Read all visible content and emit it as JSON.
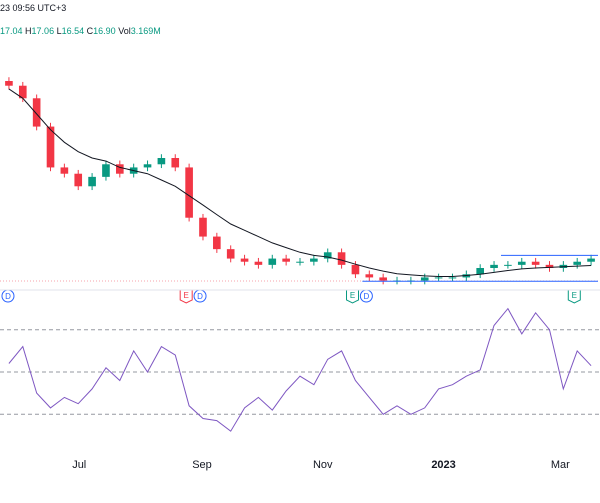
{
  "header": {
    "time": "23 09:56 UTC+3",
    "ohlc": {
      "open_label": "",
      "open_value": "17.04",
      "high_label": "H",
      "high_value": "17.06",
      "low_label": "L",
      "low_value": "16.54",
      "close_label": "C",
      "close_value": "16.90",
      "vol_label": "Vol",
      "vol_value": "3.169M"
    }
  },
  "colors": {
    "up": "#089981",
    "down": "#f23645",
    "ma": "#131722",
    "rsi": "#7e57c2",
    "trend": "#2962ff",
    "dividend": "#2962ff",
    "earnings_red": "#f23645",
    "earnings_green": "#089981"
  },
  "chart_data": [
    {
      "type": "candlestick",
      "title": "",
      "x_ticks": [
        "Jul",
        "Sep",
        "Nov",
        "2023",
        "Mar"
      ],
      "x": [
        "2022-05-23",
        "2022-05-30",
        "2022-06-06",
        "2022-06-13",
        "2022-06-20",
        "2022-06-27",
        "2022-07-04",
        "2022-07-11",
        "2022-07-18",
        "2022-07-25",
        "2022-08-01",
        "2022-08-08",
        "2022-08-15",
        "2022-08-22",
        "2022-08-29",
        "2022-09-05",
        "2022-09-12",
        "2022-09-19",
        "2022-09-26",
        "2022-10-03",
        "2022-10-10",
        "2022-10-17",
        "2022-10-24",
        "2022-10-31",
        "2022-11-07",
        "2022-11-14",
        "2022-11-21",
        "2022-11-28",
        "2022-12-05",
        "2022-12-12",
        "2022-12-19",
        "2022-12-26",
        "2023-01-02",
        "2023-01-09",
        "2023-01-16",
        "2023-01-23",
        "2023-01-30",
        "2023-02-06",
        "2023-02-13",
        "2023-02-20",
        "2023-02-27",
        "2023-03-06",
        "2023-03-13"
      ],
      "close": [
        20.4,
        20.0,
        19.1,
        17.8,
        17.6,
        17.2,
        17.5,
        17.9,
        17.6,
        17.8,
        17.9,
        18.1,
        17.8,
        16.2,
        15.6,
        15.2,
        14.9,
        14.8,
        14.7,
        14.9,
        14.8,
        14.8,
        14.9,
        15.1,
        14.7,
        14.4,
        14.3,
        14.2,
        14.2,
        14.2,
        14.3,
        14.3,
        14.3,
        14.4,
        14.6,
        14.7,
        14.7,
        14.8,
        14.7,
        14.6,
        14.7,
        14.8,
        14.9
      ],
      "ma": [
        20.3,
        20.0,
        19.5,
        19.0,
        18.6,
        18.3,
        18.1,
        18.0,
        17.8,
        17.7,
        17.6,
        17.4,
        17.2,
        16.9,
        16.6,
        16.3,
        16.0,
        15.8,
        15.6,
        15.4,
        15.25,
        15.1,
        15.0,
        14.95,
        14.85,
        14.72,
        14.6,
        14.5,
        14.42,
        14.38,
        14.35,
        14.33,
        14.33,
        14.36,
        14.4,
        14.46,
        14.52,
        14.57,
        14.6,
        14.62,
        14.64,
        14.66,
        14.68
      ],
      "ylim": [
        13.9,
        20.9
      ],
      "trend_lines": [
        {
          "x0": "2023-01-30",
          "x1": "2023-03-13",
          "y": 15.0
        },
        {
          "x0": "2022-11-21",
          "x1": "2023-03-13",
          "y": 14.18
        }
      ],
      "events": [
        {
          "type": "dividend",
          "letter": "D",
          "x": "2022-05-24"
        },
        {
          "type": "earnings",
          "letter": "E",
          "x": "2022-08-22",
          "reported": "miss"
        },
        {
          "type": "dividend",
          "letter": "D",
          "x": "2022-08-29"
        },
        {
          "type": "earnings",
          "letter": "E",
          "x": "2022-11-14",
          "reported": "beat"
        },
        {
          "type": "dividend",
          "letter": "D",
          "x": "2022-11-21"
        },
        {
          "type": "earnings",
          "letter": "E",
          "x": "2023-03-06",
          "reported": "beat"
        }
      ]
    },
    {
      "type": "line",
      "name": "",
      "ylim": [
        15,
        85
      ],
      "levels": [
        70,
        50,
        30
      ],
      "x": [
        "2022-05-23",
        "2022-05-30",
        "2022-06-06",
        "2022-06-13",
        "2022-06-20",
        "2022-06-27",
        "2022-07-04",
        "2022-07-11",
        "2022-07-18",
        "2022-07-25",
        "2022-08-01",
        "2022-08-08",
        "2022-08-15",
        "2022-08-22",
        "2022-08-29",
        "2022-09-05",
        "2022-09-12",
        "2022-09-19",
        "2022-09-26",
        "2022-10-03",
        "2022-10-10",
        "2022-10-17",
        "2022-10-24",
        "2022-10-31",
        "2022-11-07",
        "2022-11-14",
        "2022-11-21",
        "2022-11-28",
        "2022-12-05",
        "2022-12-12",
        "2022-12-19",
        "2022-12-26",
        "2023-01-02",
        "2023-01-09",
        "2023-01-16",
        "2023-01-23",
        "2023-01-30",
        "2023-02-06",
        "2023-02-13",
        "2023-02-20",
        "2023-02-27",
        "2023-03-06",
        "2023-03-13"
      ],
      "values": [
        54,
        62,
        40,
        33,
        38,
        35,
        42,
        52,
        46,
        60,
        50,
        62,
        58,
        34,
        28,
        27,
        22,
        33,
        38,
        32,
        41,
        48,
        44,
        56,
        60,
        46,
        38,
        30,
        34,
        30,
        33,
        42,
        44,
        48,
        51,
        72,
        80,
        68,
        78,
        70,
        42,
        60,
        53
      ]
    }
  ]
}
